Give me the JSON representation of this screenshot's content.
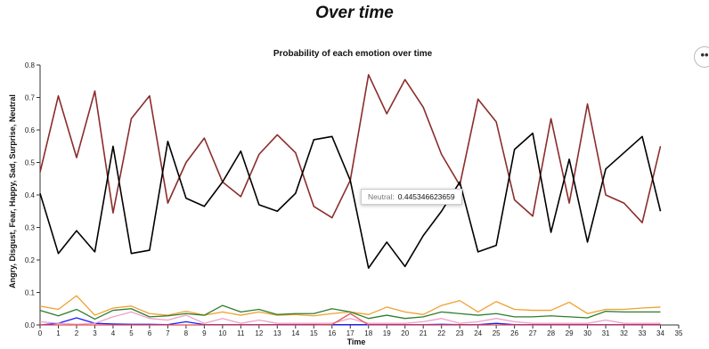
{
  "page": {
    "title": "Over time",
    "menu_icon": "ellipsis-icon",
    "menu_label": "••"
  },
  "tooltip": {
    "key": "Neutral:",
    "value": "0.445346623659"
  },
  "chart_data": {
    "type": "line",
    "title": "Probability of each emotion over time",
    "xlabel": "Time",
    "ylabel": "Angry, Disgust, Fear, Happy, Sad, Surprise, Neutral",
    "xlim": [
      0,
      35
    ],
    "ylim": [
      0,
      0.8
    ],
    "xticks": [
      0,
      1,
      2,
      3,
      4,
      5,
      6,
      7,
      8,
      9,
      10,
      11,
      12,
      13,
      14,
      15,
      16,
      17,
      18,
      19,
      20,
      21,
      22,
      23,
      24,
      25,
      26,
      27,
      28,
      29,
      30,
      31,
      32,
      33,
      34,
      35
    ],
    "yticks": [
      0,
      0.1,
      0.2,
      0.3,
      0.4,
      0.5,
      0.6,
      0.7,
      0.8
    ],
    "ytick_labels": [
      "0.0",
      "0.1",
      "0.2",
      "0.3",
      "0.4",
      "0.5",
      "0.6",
      "0.7",
      "0.8"
    ],
    "x": [
      0,
      1,
      2,
      3,
      4,
      5,
      6,
      7,
      8,
      9,
      10,
      11,
      12,
      13,
      14,
      15,
      16,
      17,
      18,
      19,
      20,
      21,
      22,
      23,
      24,
      25,
      26,
      27,
      28,
      29,
      30,
      31,
      32,
      33,
      34
    ],
    "series": [
      {
        "color": "#8b2c2c",
        "values": [
          0.47,
          0.705,
          0.515,
          0.72,
          0.345,
          0.635,
          0.705,
          0.375,
          0.5,
          0.575,
          0.44,
          0.395,
          0.525,
          0.585,
          0.53,
          0.365,
          0.33,
          0.445,
          0.77,
          0.65,
          0.755,
          0.67,
          0.525,
          0.43,
          0.695,
          0.625,
          0.385,
          0.335,
          0.635,
          0.375,
          0.68,
          0.4,
          0.375,
          0.315,
          0.55
        ]
      },
      {
        "color": "#000000",
        "values": [
          0.405,
          0.22,
          0.29,
          0.225,
          0.55,
          0.22,
          0.23,
          0.565,
          0.39,
          0.365,
          0.44,
          0.535,
          0.37,
          0.35,
          0.405,
          0.57,
          0.58,
          0.445,
          0.175,
          0.255,
          0.18,
          0.275,
          0.35,
          0.44,
          0.225,
          0.245,
          0.54,
          0.59,
          0.285,
          0.51,
          0.255,
          0.48,
          0.53,
          0.58,
          0.35
        ]
      },
      {
        "color": "#f0a030",
        "values": [
          0.058,
          0.048,
          0.09,
          0.03,
          0.052,
          0.058,
          0.035,
          0.03,
          0.042,
          0.03,
          0.04,
          0.03,
          0.04,
          0.03,
          0.032,
          0.028,
          0.035,
          0.04,
          0.032,
          0.055,
          0.04,
          0.032,
          0.06,
          0.075,
          0.04,
          0.072,
          0.048,
          0.045,
          0.045,
          0.07,
          0.035,
          0.048,
          0.048,
          0.052,
          0.055
        ]
      },
      {
        "color": "#2e7d2e",
        "values": [
          0.045,
          0.028,
          0.048,
          0.018,
          0.045,
          0.05,
          0.025,
          0.028,
          0.035,
          0.03,
          0.06,
          0.04,
          0.048,
          0.032,
          0.035,
          0.035,
          0.05,
          0.04,
          0.02,
          0.03,
          0.02,
          0.025,
          0.04,
          0.035,
          0.03,
          0.035,
          0.025,
          0.025,
          0.028,
          0.025,
          0.022,
          0.042,
          0.04,
          0.04,
          0.04
        ]
      },
      {
        "color": "#1a1aff",
        "values": [
          0.0,
          0.005,
          0.022,
          0.005,
          0.003,
          0.002,
          0.002,
          0.001,
          0.01,
          0.001,
          0.001,
          0.001,
          0.001,
          0.001,
          0.001,
          0.001,
          0.001,
          0.001,
          0.001,
          0.001,
          0.001,
          0.001,
          0.002,
          0.001,
          0.001,
          0.005,
          0.001,
          0.001,
          0.001,
          0.001,
          0.001,
          0.001,
          0.001,
          0.001,
          0.001
        ]
      },
      {
        "color": "#f0a0c8",
        "values": [
          0.01,
          0.005,
          0.002,
          0.005,
          0.025,
          0.04,
          0.02,
          0.015,
          0.03,
          0.005,
          0.02,
          0.005,
          0.015,
          0.005,
          0.005,
          0.005,
          0.005,
          0.02,
          0.005,
          0.005,
          0.005,
          0.01,
          0.02,
          0.005,
          0.01,
          0.02,
          0.01,
          0.005,
          0.005,
          0.005,
          0.005,
          0.015,
          0.005,
          0.005,
          0.005
        ]
      },
      {
        "color": "#e05050",
        "values": [
          0.0,
          0.0,
          0.0,
          0.0,
          0.0,
          0.0,
          0.0,
          0.0,
          0.0,
          0.0,
          0.0,
          0.0,
          0.0,
          0.0,
          0.0,
          0.0,
          0.001,
          0.035,
          0.0,
          0.0,
          0.0,
          0.0,
          0.0,
          0.0,
          0.0,
          0.0,
          0.0,
          0.0,
          0.0,
          0.0,
          0.0,
          0.0,
          0.0,
          0.0,
          0.0
        ]
      }
    ],
    "grid": false,
    "legend": "none"
  }
}
